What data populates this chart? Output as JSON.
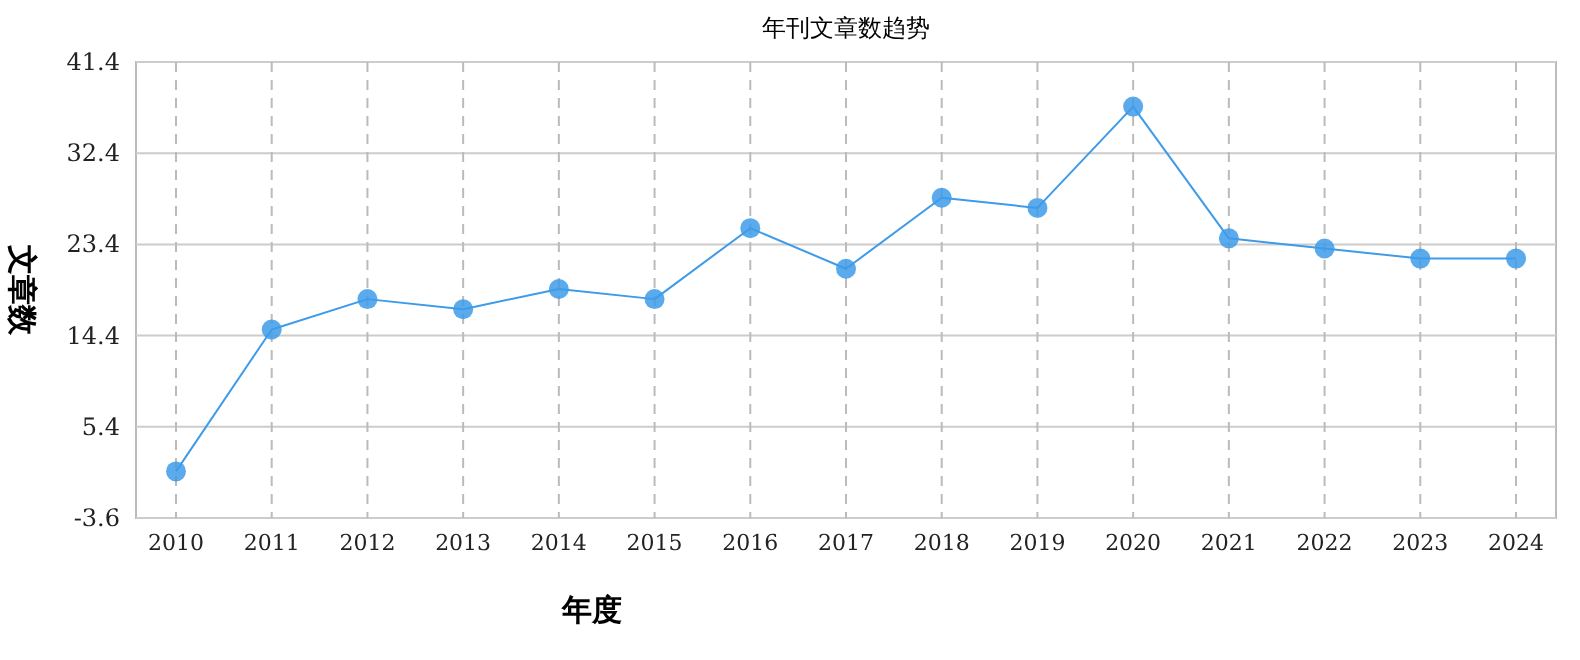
{
  "chart_data": {
    "type": "line",
    "title": "年刊文章数趋势",
    "xlabel": "年度",
    "ylabel": "文章数",
    "categories": [
      "2010",
      "2011",
      "2012",
      "2013",
      "2014",
      "2015",
      "2016",
      "2017",
      "2018",
      "2019",
      "2020",
      "2021",
      "2022",
      "2023",
      "2024"
    ],
    "series": [
      {
        "color": "#3d9be9",
        "values": [
          1,
          15,
          18,
          17,
          19,
          18,
          25,
          21,
          28,
          27,
          37,
          24,
          23,
          22,
          22
        ]
      }
    ],
    "ylim": [
      -3.6,
      41.4
    ],
    "yticks": [
      -3.6,
      5.4,
      14.4,
      23.4,
      32.4,
      41.4
    ],
    "grid": true,
    "marker": "circle",
    "line_style": "solid"
  }
}
